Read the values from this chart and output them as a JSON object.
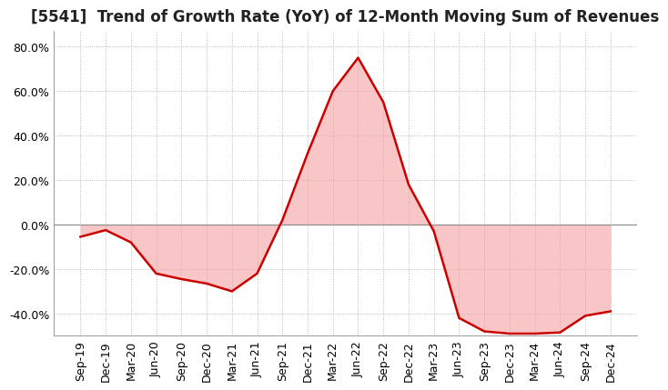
{
  "title": "[5541]  Trend of Growth Rate (YoY) of 12-Month Moving Sum of Revenues",
  "title_fontsize": 12,
  "line_color": "#cc0000",
  "fill_color": "#f4a0a0",
  "background_color": "#ffffff",
  "grid_color": "#aaaaaa",
  "dates": [
    "Sep-19",
    "Dec-19",
    "Mar-20",
    "Jun-20",
    "Sep-20",
    "Dec-20",
    "Mar-21",
    "Jun-21",
    "Sep-21",
    "Dec-21",
    "Mar-22",
    "Jun-22",
    "Sep-22",
    "Dec-22",
    "Mar-23",
    "Jun-23",
    "Sep-23",
    "Dec-23",
    "Mar-24",
    "Jun-24",
    "Sep-24",
    "Dec-24"
  ],
  "values": [
    -5.5,
    -2.5,
    -8.0,
    -22.0,
    -24.5,
    -26.5,
    -30.0,
    -22.0,
    2.0,
    32.0,
    60.0,
    75.0,
    55.0,
    18.0,
    -3.0,
    -42.0,
    -48.0,
    -49.0,
    -49.0,
    -48.5,
    -41.0,
    -39.0
  ],
  "ylim": [
    -50,
    87
  ],
  "yticks": [
    -40,
    -20,
    0,
    20,
    40,
    60,
    80
  ],
  "tick_fontsize": 9,
  "xlabel_rotation": 90
}
